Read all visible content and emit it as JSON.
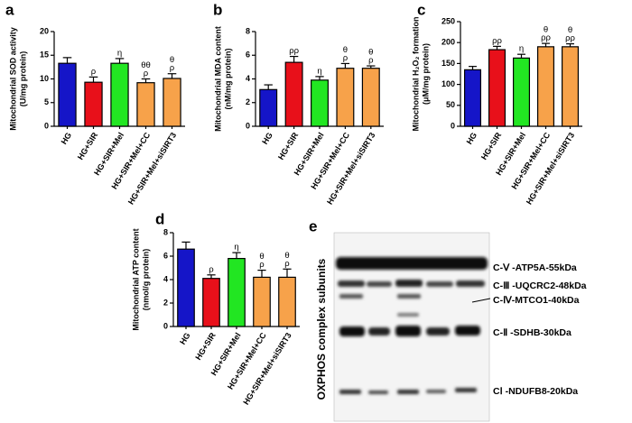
{
  "chart_data": [
    {
      "type": "bar",
      "panel": "a",
      "ylabel": [
        "Mitochondrial SOD activity",
        "(U/mg protein)"
      ],
      "categories": [
        "HG",
        "HG+SIR",
        "HG+SIR+Mel",
        "HG+SIR+Mel+CC",
        "HG+SIR+Mel+siSIRT3"
      ],
      "values": [
        13.3,
        9.3,
        13.3,
        9.2,
        10.1
      ],
      "errors": [
        1.2,
        1.1,
        1.0,
        0.8,
        1.0
      ],
      "colors": [
        "#1515c8",
        "#e8101a",
        "#22e622",
        "#f7a24a",
        "#f7a24a"
      ],
      "annotations": [
        null,
        [
          "ρ"
        ],
        [
          "η"
        ],
        [
          "θθ",
          "ρ"
        ],
        [
          "θ",
          "ρ"
        ]
      ],
      "ylim": [
        0,
        20
      ],
      "yticks": [
        0,
        5,
        10,
        15,
        20
      ]
    },
    {
      "type": "bar",
      "panel": "b",
      "ylabel": [
        "Mitochondrial MDA content",
        "(nM/mg protein)"
      ],
      "categories": [
        "HG",
        "HG+SIR",
        "HG+SIR+Mel",
        "HG+SIR+Mel+CC",
        "HG+SIR+Mel+siSIRT3"
      ],
      "values": [
        3.1,
        5.4,
        3.9,
        4.9,
        4.9
      ],
      "errors": [
        0.4,
        0.5,
        0.3,
        0.4,
        0.2
      ],
      "colors": [
        "#1515c8",
        "#e8101a",
        "#22e622",
        "#f7a24a",
        "#f7a24a"
      ],
      "annotations": [
        null,
        [
          "ρρ"
        ],
        [
          "η"
        ],
        [
          "θ",
          "ρ"
        ],
        [
          "θ",
          "ρ"
        ]
      ],
      "ylim": [
        0,
        8
      ],
      "yticks": [
        0,
        2,
        4,
        6,
        8
      ]
    },
    {
      "type": "bar",
      "panel": "c",
      "ylabel": [
        "Mitochondrial H₂O₂ formation",
        "(μM/mg protein)"
      ],
      "categories": [
        "HG",
        "HG+SIR",
        "HG+SIR+Mel",
        "HG+SIR+Mel+CC",
        "HG+SIR+Mel+siSIRT3"
      ],
      "values": [
        135,
        183,
        163,
        190,
        190
      ],
      "errors": [
        8,
        8,
        9,
        8,
        7
      ],
      "colors": [
        "#1515c8",
        "#e8101a",
        "#22e622",
        "#f7a24a",
        "#f7a24a"
      ],
      "annotations": [
        null,
        [
          "ρρ"
        ],
        [
          "η"
        ],
        [
          "θ",
          "ρρ"
        ],
        [
          "θ",
          "ρρ"
        ]
      ],
      "ylim": [
        0,
        250
      ],
      "yticks": [
        0,
        50,
        100,
        150,
        200,
        250
      ]
    },
    {
      "type": "bar",
      "panel": "d",
      "ylabel": [
        "Mitochondrial ATP content",
        "(nmol/g protein)"
      ],
      "categories": [
        "HG",
        "HG+SIR",
        "HG+SIR+Mel",
        "HG+SIR+Mel+CC",
        "HG+SIR+Mel+siSIRT3"
      ],
      "values": [
        6.6,
        4.1,
        5.8,
        4.2,
        4.2
      ],
      "errors": [
        0.6,
        0.3,
        0.5,
        0.6,
        0.7
      ],
      "colors": [
        "#1515c8",
        "#e8101a",
        "#22e622",
        "#f7a24a",
        "#f7a24a"
      ],
      "annotations": [
        null,
        [
          "ρ"
        ],
        [
          "η"
        ],
        [
          "θ",
          "ρ"
        ],
        [
          "θ",
          "ρ"
        ]
      ],
      "ylim": [
        0,
        8
      ],
      "yticks": [
        0,
        2,
        4,
        6,
        8
      ]
    }
  ],
  "blot": {
    "panel": "e",
    "ylabel": "OXPHOS complex subunits",
    "labels": [
      "C-Ⅴ -ATP5A-55kDa",
      "C-Ⅲ -UQCRC2-48kDa",
      "C-Ⅳ-MTCO1-40kDa",
      "C-Ⅱ -SDHB-30kDa",
      "CⅠ -NDUFB8-20kDa"
    ]
  }
}
